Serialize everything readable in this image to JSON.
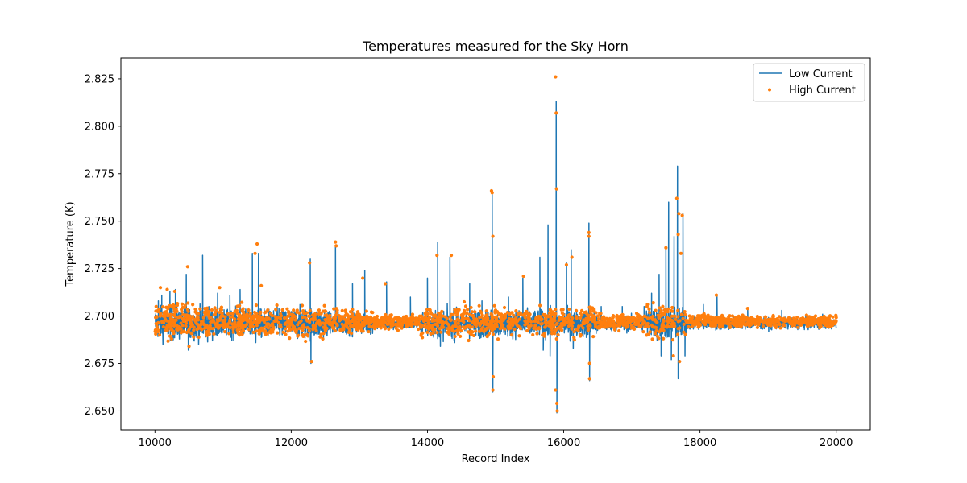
{
  "chart_data": {
    "type": "line",
    "title": "Temperatures measured for the Sky Horn",
    "xlabel": "Record Index",
    "ylabel": "Temperature (K)",
    "xlim": [
      9500,
      20500
    ],
    "ylim": [
      2.64,
      2.836
    ],
    "xticks": [
      10000,
      12000,
      14000,
      16000,
      18000,
      20000
    ],
    "xtick_labels": [
      "10000",
      "12000",
      "14000",
      "16000",
      "18000",
      "20000"
    ],
    "yticks": [
      2.65,
      2.675,
      2.7,
      2.725,
      2.75,
      2.775,
      2.8,
      2.825
    ],
    "ytick_labels": [
      "2.650",
      "2.675",
      "2.700",
      "2.725",
      "2.750",
      "2.775",
      "2.800",
      "2.825"
    ],
    "legend_position": "top-right",
    "baseline": 2.696,
    "record_range": [
      10000,
      20000
    ],
    "series": [
      {
        "name": "Low Current",
        "kind": "line",
        "color": "#1f77b4",
        "spikes": [
          {
            "x": 10050,
            "v": 2.708
          },
          {
            "x": 10100,
            "v": 2.711
          },
          {
            "x": 10220,
            "v": 2.713
          },
          {
            "x": 10300,
            "v": 2.714
          },
          {
            "x": 10460,
            "v": 2.722
          },
          {
            "x": 10490,
            "v": 2.682
          },
          {
            "x": 10700,
            "v": 2.732
          },
          {
            "x": 10920,
            "v": 2.712
          },
          {
            "x": 11100,
            "v": 2.711
          },
          {
            "x": 11250,
            "v": 2.714
          },
          {
            "x": 11430,
            "v": 2.733
          },
          {
            "x": 11480,
            "v": 2.686
          },
          {
            "x": 11520,
            "v": 2.733
          },
          {
            "x": 11820,
            "v": 2.704
          },
          {
            "x": 12280,
            "v": 2.73
          },
          {
            "x": 12290,
            "v": 2.675
          },
          {
            "x": 12650,
            "v": 2.737
          },
          {
            "x": 12900,
            "v": 2.717
          },
          {
            "x": 13080,
            "v": 2.724
          },
          {
            "x": 13400,
            "v": 2.718
          },
          {
            "x": 13750,
            "v": 2.71
          },
          {
            "x": 14000,
            "v": 2.72
          },
          {
            "x": 14150,
            "v": 2.739
          },
          {
            "x": 14190,
            "v": 2.684
          },
          {
            "x": 14330,
            "v": 2.731
          },
          {
            "x": 14400,
            "v": 2.686
          },
          {
            "x": 14620,
            "v": 2.717
          },
          {
            "x": 14800,
            "v": 2.708
          },
          {
            "x": 14950,
            "v": 2.764
          },
          {
            "x": 14960,
            "v": 2.66
          },
          {
            "x": 15190,
            "v": 2.71
          },
          {
            "x": 15400,
            "v": 2.72
          },
          {
            "x": 15650,
            "v": 2.731
          },
          {
            "x": 15700,
            "v": 2.682
          },
          {
            "x": 15770,
            "v": 2.748
          },
          {
            "x": 15800,
            "v": 2.679
          },
          {
            "x": 15890,
            "v": 2.813
          },
          {
            "x": 15900,
            "v": 2.649
          },
          {
            "x": 16040,
            "v": 2.728
          },
          {
            "x": 16110,
            "v": 2.735
          },
          {
            "x": 16140,
            "v": 2.683
          },
          {
            "x": 16370,
            "v": 2.749
          },
          {
            "x": 16380,
            "v": 2.666
          },
          {
            "x": 16550,
            "v": 2.705
          },
          {
            "x": 16860,
            "v": 2.705
          },
          {
            "x": 17180,
            "v": 2.705
          },
          {
            "x": 17290,
            "v": 2.712
          },
          {
            "x": 17400,
            "v": 2.722
          },
          {
            "x": 17430,
            "v": 2.679
          },
          {
            "x": 17500,
            "v": 2.736
          },
          {
            "x": 17540,
            "v": 2.76
          },
          {
            "x": 17580,
            "v": 2.677
          },
          {
            "x": 17620,
            "v": 2.742
          },
          {
            "x": 17670,
            "v": 2.779
          },
          {
            "x": 17680,
            "v": 2.667
          },
          {
            "x": 17750,
            "v": 2.754
          },
          {
            "x": 17780,
            "v": 2.679
          },
          {
            "x": 18050,
            "v": 2.706
          },
          {
            "x": 18250,
            "v": 2.711
          },
          {
            "x": 18700,
            "v": 2.704
          },
          {
            "x": 19200,
            "v": 2.703
          },
          {
            "x": 19800,
            "v": 2.701
          }
        ]
      },
      {
        "name": "High Current",
        "kind": "scatter",
        "color": "#ff7f0e",
        "outliers": [
          {
            "x": 10080,
            "v": 2.715
          },
          {
            "x": 10180,
            "v": 2.714
          },
          {
            "x": 10290,
            "v": 2.713
          },
          {
            "x": 10480,
            "v": 2.726
          },
          {
            "x": 10500,
            "v": 2.684
          },
          {
            "x": 10950,
            "v": 2.715
          },
          {
            "x": 11500,
            "v": 2.738
          },
          {
            "x": 11470,
            "v": 2.733
          },
          {
            "x": 11560,
            "v": 2.716
          },
          {
            "x": 12270,
            "v": 2.728
          },
          {
            "x": 12300,
            "v": 2.676
          },
          {
            "x": 12650,
            "v": 2.739
          },
          {
            "x": 12660,
            "v": 2.737
          },
          {
            "x": 13050,
            "v": 2.72
          },
          {
            "x": 13380,
            "v": 2.717
          },
          {
            "x": 14140,
            "v": 2.732
          },
          {
            "x": 14350,
            "v": 2.732
          },
          {
            "x": 14940,
            "v": 2.766
          },
          {
            "x": 14950,
            "v": 2.765
          },
          {
            "x": 14960,
            "v": 2.742
          },
          {
            "x": 14960,
            "v": 2.661
          },
          {
            "x": 14965,
            "v": 2.668
          },
          {
            "x": 15410,
            "v": 2.721
          },
          {
            "x": 15880,
            "v": 2.826
          },
          {
            "x": 15890,
            "v": 2.807
          },
          {
            "x": 15895,
            "v": 2.767
          },
          {
            "x": 15900,
            "v": 2.654
          },
          {
            "x": 15905,
            "v": 2.65
          },
          {
            "x": 15880,
            "v": 2.661
          },
          {
            "x": 16040,
            "v": 2.727
          },
          {
            "x": 16120,
            "v": 2.731
          },
          {
            "x": 16370,
            "v": 2.744
          },
          {
            "x": 16370,
            "v": 2.742
          },
          {
            "x": 16380,
            "v": 2.667
          },
          {
            "x": 16380,
            "v": 2.675
          },
          {
            "x": 17500,
            "v": 2.736
          },
          {
            "x": 17660,
            "v": 2.762
          },
          {
            "x": 17690,
            "v": 2.754
          },
          {
            "x": 17740,
            "v": 2.753
          },
          {
            "x": 17680,
            "v": 2.743
          },
          {
            "x": 17720,
            "v": 2.733
          },
          {
            "x": 17700,
            "v": 2.676
          },
          {
            "x": 17610,
            "v": 2.679
          },
          {
            "x": 18240,
            "v": 2.711
          },
          {
            "x": 18700,
            "v": 2.704
          }
        ]
      }
    ]
  }
}
